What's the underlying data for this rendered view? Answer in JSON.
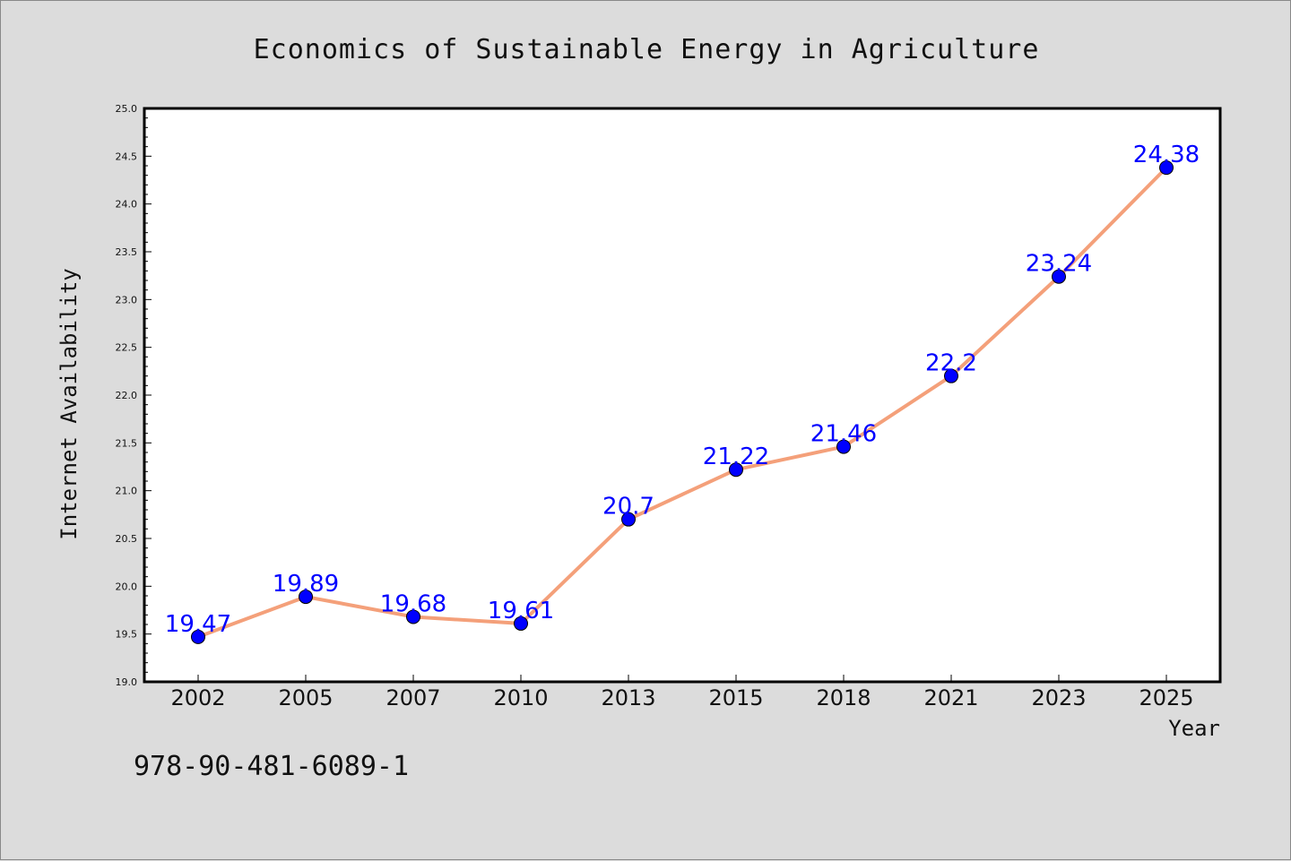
{
  "chart_data": {
    "type": "line",
    "title": "Economics of Sustainable Energy in Agriculture",
    "xlabel": "Year",
    "ylabel": "Internet Availability",
    "categories": [
      "2002",
      "2005",
      "2007",
      "2010",
      "2013",
      "2015",
      "2018",
      "2021",
      "2023",
      "2025"
    ],
    "values": [
      19.47,
      19.89,
      19.68,
      19.61,
      20.7,
      21.22,
      21.46,
      22.2,
      23.24,
      24.38
    ],
    "data_labels": [
      "19.47",
      "19.89",
      "19.68",
      "19.61",
      "20.7",
      "21.22",
      "21.46",
      "22.2",
      "23.24",
      "24.38"
    ],
    "ylim": [
      19.0,
      25.0
    ],
    "yticks": [
      "19.0",
      "19.5",
      "20.0",
      "20.5",
      "21.0",
      "21.5",
      "22.0",
      "22.5",
      "23.0",
      "23.5",
      "24.0",
      "24.5",
      "25.0"
    ],
    "grid": false,
    "colors": {
      "line": "#f4a07a",
      "marker": "#0000ff",
      "label": "#0000ff",
      "background": "#dcdcdc",
      "plot_bg": "#ffffff"
    }
  },
  "footer_text": "978-90-481-6089-1"
}
